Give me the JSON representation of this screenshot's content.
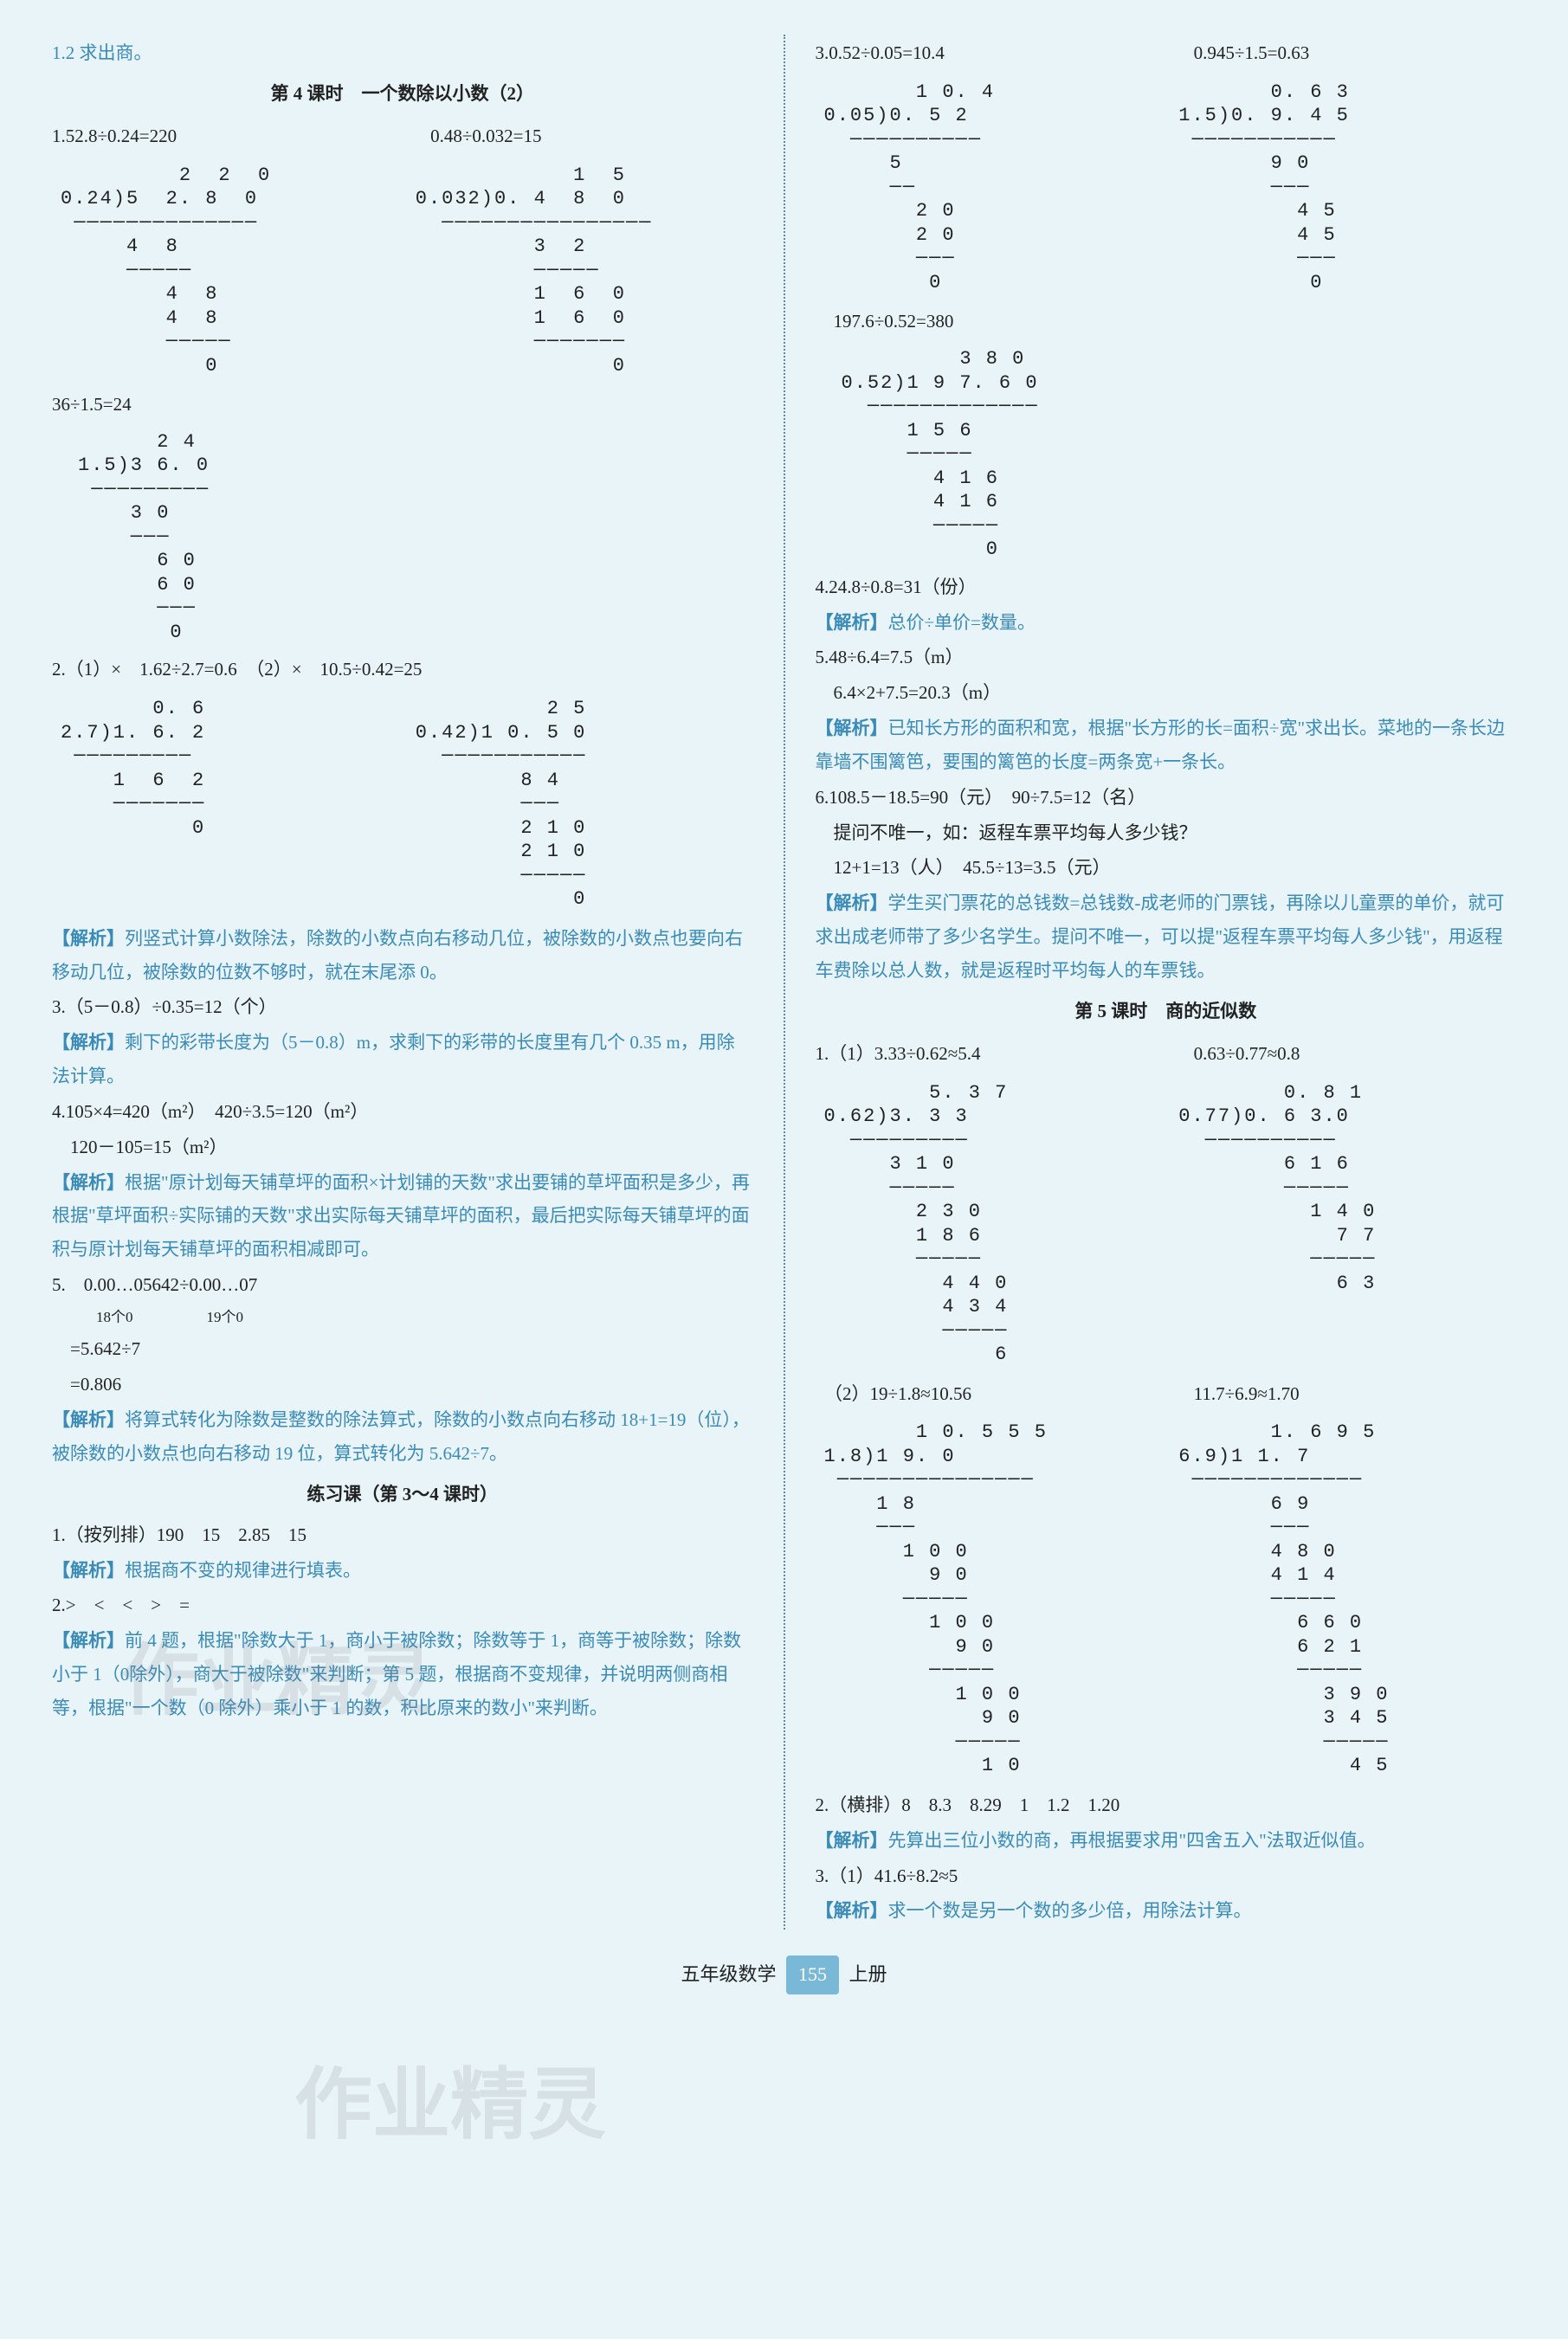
{
  "left": {
    "intro": "1.2 求出商。",
    "section1_title": "第 4 课时　一个数除以小数（2）",
    "q1_eq1": "1.52.8÷0.24=220",
    "q1_eq2": "0.48÷0.032=15",
    "ld_q1a": "         2  2  0\n0.24)5  2. 8  0\n ──────────────\n     4  8\n     ─────\n        4  8\n        4  8\n        ─────\n           0",
    "ld_q1b": "            1  5\n0.032)0. 4  8  0\n  ────────────────\n         3  2\n         ─────\n         1  6  0\n         1  6  0\n         ───────\n               0",
    "q1_eq3": "36÷1.5=24",
    "ld_q1c": "      2 4\n1.5)3 6. 0\n ─────────\n    3 0\n    ───\n      6 0\n      6 0\n      ───\n       0",
    "q2_a": "2.（1）×　1.62÷2.7=0.6　（2）×　10.5÷0.42=25",
    "ld_q2a": "       0. 6\n2.7)1. 6. 2\n ─────────\n    1  6  2\n    ───────\n          0",
    "ld_q2b": "          2 5\n0.42)1 0. 5 0\n  ───────────\n        8 4\n        ───\n        2 1 0\n        2 1 0\n        ─────\n            0",
    "a2_label": "【解析】",
    "a2_text": "列竖式计算小数除法，除数的小数点向右移动几位，被除数的小数点也要向右移动几位，被除数的位数不够时，就在末尾添 0。",
    "q3": "3.（5－0.8）÷0.35=12（个）",
    "a3_text": "剩下的彩带长度为（5－0.8）m，求剩下的彩带的长度里有几个 0.35 m，用除法计算。",
    "q4_a": "4.105×4=420（m²）　420÷3.5=120（m²）",
    "q4_b": "　120－105=15（m²）",
    "a4_text": "根据\"原计划每天铺草坪的面积×计划铺的天数\"求出要铺的草坪面积是多少，再根据\"草坪面积÷实际铺的天数\"求出实际每天铺草坪的面积，最后把实际每天铺草坪的面积与原计划每天铺草坪的面积相减即可。",
    "q5_a": "5.　0.00…05642÷0.00…07",
    "q5_b": "　　　18个0　　　　　19个0",
    "q5_c": "　=5.642÷7",
    "q5_d": "　=0.806",
    "a5_text": "将算式转化为除数是整数的除法算式，除数的小数点向右移动 18+1=19（位），被除数的小数点也向右移动 19 位，算式转化为 5.642÷7。",
    "section2_title": "练习课（第 3～4 课时）",
    "p1": "1.（按列排）190　15　2.85　15",
    "p1_analysis": "根据商不变的规律进行填表。",
    "p2": "2.>　<　<　>　=",
    "p2_analysis": "前 4 题，根据\"除数大于 1，商小于被除数；除数等于 1，商等于被除数；除数小于 1（0除外），商大于被除数\"来判断；第 5 题，根据商不变规律，并说明两侧商相等，根据\"一个数（0 除外）乘小于 1 的数，积比原来的数小\"来判断。"
  },
  "right": {
    "q3_eq1": "3.0.52÷0.05=10.4",
    "q3_eq2": "0.945÷1.5=0.63",
    "ld_q3a": "       1 0. 4\n0.05)0. 5 2\n  ──────────\n     5\n     ──\n       2 0\n       2 0\n       ───\n        0",
    "ld_q3b": "       0. 6 3\n1.5)0. 9. 4 5\n ───────────\n       9 0\n       ───\n         4 5\n         4 5\n         ───\n          0",
    "q3_eq3": "　197.6÷0.52=380",
    "ld_q3c": "         3 8 0\n0.52)1 9 7. 6 0\n  ─────────────\n     1 5 6\n     ─────\n       4 1 6\n       4 1 6\n       ─────\n           0",
    "q4": "4.24.8÷0.8=31（份）",
    "a_label": "【解析】",
    "a4_text": "总价÷单价=数量。",
    "q5_a": "5.48÷6.4=7.5（m）",
    "q5_b": "　6.4×2+7.5=20.3（m）",
    "a5_text": "已知长方形的面积和宽，根据\"长方形的长=面积÷宽\"求出长。菜地的一条长边靠墙不围篱笆，要围的篱笆的长度=两条宽+一条长。",
    "q6_a": "6.108.5－18.5=90（元）　90÷7.5=12（名）",
    "q6_b": "　提问不唯一，如：返程车票平均每人多少钱？",
    "q6_c": "　12+1=13（人）　45.5÷13=3.5（元）",
    "a6_text": "学生买门票花的总钱数=总钱数-成老师的门票钱，再除以儿童票的单价，就可求出成老师带了多少名学生。提问不唯一，可以提\"返程车票平均每人多少钱\"，用返程车费除以总人数，就是返程时平均每人的车票钱。",
    "section5_title": "第 5 课时　商的近似数",
    "s5_q1_a": "1.（1）3.33÷0.62≈5.4",
    "s5_q1_b": "0.63÷0.77≈0.8",
    "ld_s5_1a": "        5. 3 7\n0.62)3. 3 3\n  ─────────\n     3 1 0\n     ─────\n       2 3 0\n       1 8 6\n       ─────\n         4 4 0\n         4 3 4\n         ─────\n             6",
    "ld_s5_1b": "        0. 8 1\n0.77)0. 6 3.0\n  ──────────\n        6 1 6\n        ─────\n          1 4 0\n            7 7\n          ─────\n            6 3",
    "s5_q1_c": "　（2）19÷1.8≈10.56",
    "s5_q1_d": "11.7÷6.9≈1.70",
    "ld_s5_1c": "       1 0. 5 5 5\n1.8)1 9. 0\n ───────────────\n    1 8\n    ───\n      1 0 0\n        9 0\n      ─────\n        1 0 0\n          9 0\n        ─────\n          1 0 0\n            9 0\n          ─────\n            1 0",
    "ld_s5_1d": "       1. 6 9 5\n6.9)1 1. 7\n ─────────────\n       6 9\n       ───\n       4 8 0\n       4 1 4\n       ─────\n         6 6 0\n         6 2 1\n         ─────\n           3 9 0\n           3 4 5\n           ─────\n             4 5",
    "s5_q2": "2.（横排）8　8.3　8.29　1　1.2　1.20",
    "s5_a2_text": "先算出三位小数的商，再根据要求用\"四舍五入\"法取近似值。",
    "s5_q3": "3.（1）41.6÷8.2≈5",
    "s5_a3_text": "求一个数是另一个数的多少倍，用除法计算。"
  },
  "footer": {
    "grade": "五年级数学",
    "page": "155",
    "vol": "上册"
  },
  "watermark": "作业精灵"
}
